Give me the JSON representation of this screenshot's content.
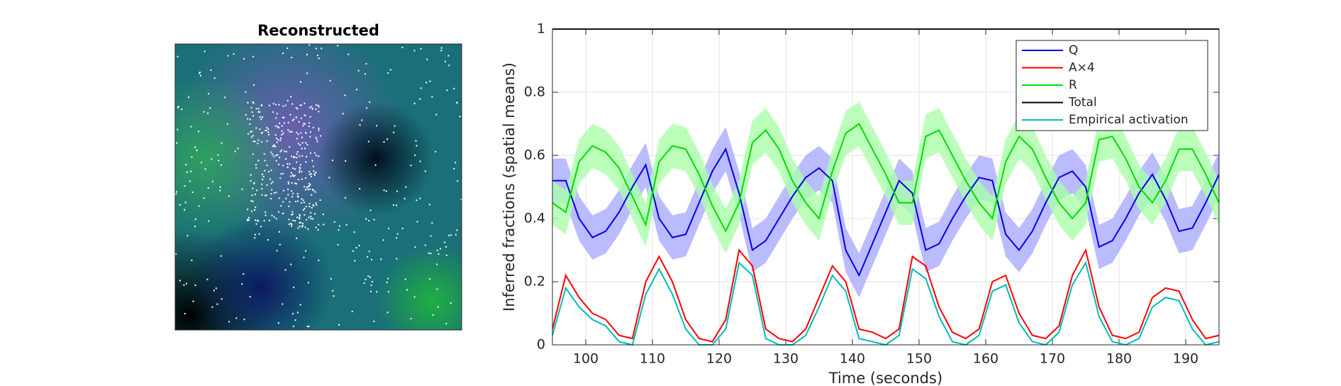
{
  "image_panel": {
    "title": "Reconstructed"
  },
  "chart_data": {
    "type": "line",
    "xlabel": "Time (seconds)",
    "ylabel": "Inferred fractions (spatial means)",
    "x": [
      95,
      97,
      99,
      101,
      103,
      105,
      107,
      109,
      111,
      113,
      115,
      117,
      119,
      121,
      123,
      125,
      127,
      129,
      131,
      133,
      135,
      137,
      139,
      141,
      143,
      145,
      147,
      149,
      151,
      153,
      155,
      157,
      159,
      161,
      163,
      165,
      167,
      169,
      171,
      173,
      175,
      177,
      179,
      181,
      183,
      185,
      187,
      189,
      191,
      193,
      195
    ],
    "xlim": [
      95,
      195
    ],
    "xticks": [
      100,
      110,
      120,
      130,
      140,
      150,
      160,
      170,
      180,
      190
    ],
    "ylim": [
      0,
      1
    ],
    "yticks": [
      0,
      0.2,
      0.4,
      0.6,
      0.8,
      1
    ],
    "grid": true,
    "legend_corner": "northeast",
    "series": [
      {
        "name": "Q",
        "color": "#0000ee",
        "band": 0.07,
        "band_color": "#aaaaff",
        "values": [
          0.52,
          0.52,
          0.4,
          0.34,
          0.36,
          0.42,
          0.5,
          0.57,
          0.4,
          0.34,
          0.35,
          0.45,
          0.55,
          0.62,
          0.48,
          0.3,
          0.33,
          0.4,
          0.47,
          0.53,
          0.56,
          0.52,
          0.3,
          0.22,
          0.32,
          0.42,
          0.52,
          0.48,
          0.3,
          0.32,
          0.4,
          0.47,
          0.53,
          0.52,
          0.35,
          0.3,
          0.36,
          0.45,
          0.53,
          0.55,
          0.5,
          0.31,
          0.33,
          0.4,
          0.48,
          0.54,
          0.46,
          0.36,
          0.37,
          0.45,
          0.54
        ]
      },
      {
        "name": "A×4",
        "color": "#ff0000",
        "values": [
          0.05,
          0.22,
          0.15,
          0.1,
          0.08,
          0.03,
          0.02,
          0.2,
          0.28,
          0.2,
          0.08,
          0.02,
          0.01,
          0.08,
          0.3,
          0.25,
          0.05,
          0.02,
          0.01,
          0.05,
          0.15,
          0.25,
          0.2,
          0.05,
          0.04,
          0.02,
          0.05,
          0.28,
          0.25,
          0.12,
          0.04,
          0.02,
          0.05,
          0.2,
          0.22,
          0.1,
          0.03,
          0.02,
          0.06,
          0.22,
          0.3,
          0.12,
          0.03,
          0.02,
          0.04,
          0.15,
          0.18,
          0.17,
          0.08,
          0.02,
          0.03
        ]
      },
      {
        "name": "R",
        "color": "#00dd00",
        "band": 0.07,
        "band_color": "#aaffaa",
        "values": [
          0.45,
          0.42,
          0.58,
          0.63,
          0.61,
          0.56,
          0.47,
          0.38,
          0.58,
          0.63,
          0.62,
          0.54,
          0.44,
          0.36,
          0.45,
          0.64,
          0.68,
          0.62,
          0.52,
          0.45,
          0.4,
          0.55,
          0.67,
          0.7,
          0.62,
          0.54,
          0.45,
          0.45,
          0.66,
          0.68,
          0.6,
          0.52,
          0.45,
          0.4,
          0.58,
          0.66,
          0.62,
          0.53,
          0.45,
          0.4,
          0.45,
          0.65,
          0.66,
          0.59,
          0.5,
          0.45,
          0.52,
          0.62,
          0.62,
          0.54,
          0.45
        ]
      },
      {
        "name": "Total",
        "color": "#000000",
        "values": [
          1,
          1,
          1,
          1,
          1,
          1,
          1,
          1,
          1,
          1,
          1,
          1,
          1,
          1,
          1,
          1,
          1,
          1,
          1,
          1,
          1,
          1,
          1,
          1,
          1,
          1,
          1,
          1,
          1,
          1,
          1,
          1,
          1,
          1,
          1,
          1,
          1,
          1,
          1,
          1,
          1,
          1,
          1,
          1,
          1,
          1,
          1,
          1,
          1,
          1,
          1
        ]
      },
      {
        "name": "Empirical activation",
        "color": "#00bbbb",
        "values": [
          0.03,
          0.18,
          0.12,
          0.08,
          0.06,
          0.01,
          0.0,
          0.16,
          0.24,
          0.16,
          0.05,
          0.0,
          0.0,
          0.05,
          0.26,
          0.22,
          0.02,
          0.0,
          0.0,
          0.03,
          0.12,
          0.22,
          0.17,
          0.02,
          0.01,
          0.0,
          0.03,
          0.24,
          0.21,
          0.09,
          0.01,
          0.0,
          0.03,
          0.17,
          0.19,
          0.07,
          0.01,
          0.0,
          0.04,
          0.19,
          0.26,
          0.09,
          0.01,
          0.0,
          0.02,
          0.12,
          0.15,
          0.14,
          0.05,
          0.0,
          0.01
        ]
      }
    ]
  }
}
